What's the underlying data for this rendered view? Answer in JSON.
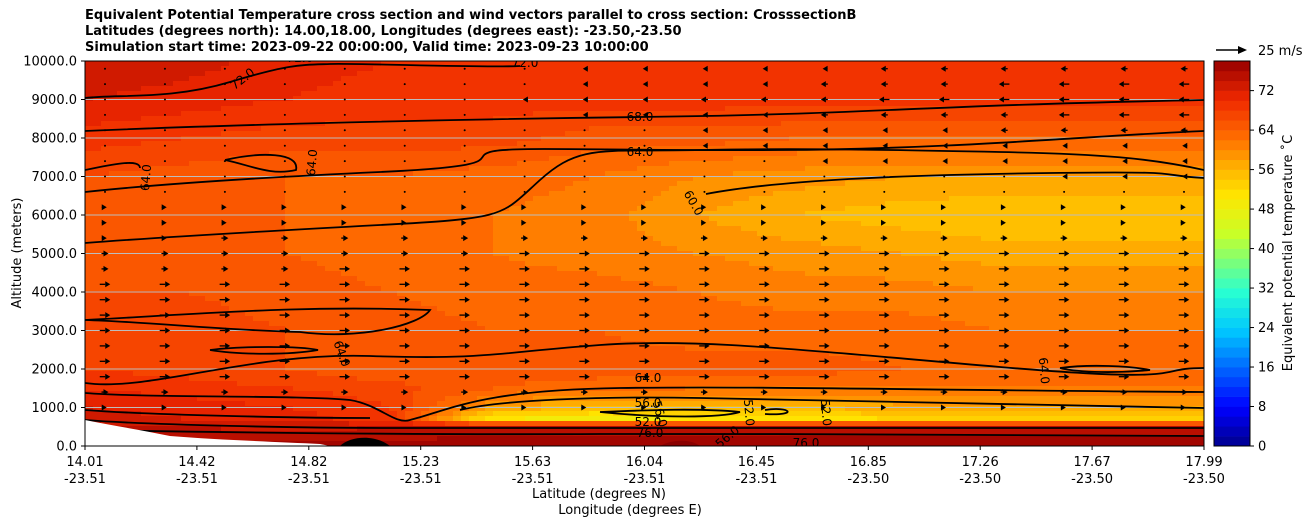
{
  "title": {
    "line1": "Equivalent Potential Temperature cross section and wind vectors parallel to cross section: CrosssectionB",
    "line2": "Latitudes (degrees north): 14.00,18.00, Longitudes (degrees east): -23.50,-23.50",
    "line3": "Simulation start time: 2023-09-22 00:00:00, Valid time: 2023-09-23 10:00:00"
  },
  "chart_data": {
    "type": "heatmap",
    "xlabel_lat": "Latitude (degrees N)",
    "xlabel_lon": "Longitude (degrees E)",
    "ylabel": "Altitude (meters)",
    "ylim": [
      0,
      10000
    ],
    "y_ticks": [
      "0.0",
      "1000.0",
      "2000.0",
      "3000.0",
      "4000.0",
      "5000.0",
      "6000.0",
      "7000.0",
      "8000.0",
      "9000.0",
      "10000.0"
    ],
    "y_tick_values": [
      0,
      1000,
      2000,
      3000,
      4000,
      5000,
      6000,
      7000,
      8000,
      9000,
      10000
    ],
    "x_ticks_lat": [
      "14.01",
      "14.42",
      "14.82",
      "15.23",
      "15.63",
      "16.04",
      "16.45",
      "16.85",
      "17.26",
      "17.67",
      "17.99"
    ],
    "x_ticks_lon": [
      "-23.51",
      "-23.51",
      "-23.51",
      "-23.51",
      "-23.51",
      "-23.51",
      "-23.51",
      "-23.50",
      "-23.50",
      "-23.50",
      "-23.50"
    ],
    "grid": "horizontal",
    "colorbar": {
      "label": "Equivalent potential temperature ˚C",
      "ticks": [
        "0",
        "8",
        "16",
        "24",
        "32",
        "40",
        "48",
        "56",
        "64",
        "72"
      ],
      "tick_values": [
        0,
        8,
        16,
        24,
        32,
        40,
        48,
        56,
        64,
        72
      ],
      "range": [
        0,
        78
      ]
    },
    "quiver_key": "25 m/s",
    "contour_labels": [
      "72.0",
      "72.0",
      "72.0",
      "68.0",
      "64.0",
      "64.0",
      "64.0",
      "60.0",
      "64.0",
      "64.0",
      "64.0",
      "56.0",
      "56.0",
      "52.0",
      "52.0",
      "52.0",
      "56.0",
      "76.0",
      "76.0"
    ],
    "field_rows": [
      {
        "y": 10000,
        "values": [
          74,
          73,
          71,
          70,
          70,
          70,
          70,
          70,
          70,
          70,
          70,
          70
        ]
      },
      {
        "y": 9000,
        "values": [
          72,
          71,
          70,
          69,
          69,
          69,
          69,
          69,
          69,
          69,
          69,
          69
        ]
      },
      {
        "y": 8000,
        "values": [
          69,
          68,
          67,
          67,
          67,
          65,
          65,
          64,
          64,
          64,
          64,
          64
        ]
      },
      {
        "y": 7000,
        "values": [
          66,
          65,
          64,
          64,
          63,
          62,
          60,
          59,
          58,
          58,
          58,
          58
        ]
      },
      {
        "y": 6000,
        "values": [
          66,
          65,
          64,
          63,
          62,
          61,
          58,
          56,
          55,
          54,
          54,
          54
        ]
      },
      {
        "y": 5000,
        "values": [
          66,
          65,
          64,
          63,
          62,
          61,
          60,
          59,
          58,
          57,
          57,
          57
        ]
      },
      {
        "y": 4000,
        "values": [
          66,
          66,
          65,
          64,
          63,
          63,
          62,
          61,
          61,
          60,
          60,
          60
        ]
      },
      {
        "y": 3000,
        "values": [
          68,
          67,
          66,
          65,
          64,
          64,
          63,
          63,
          63,
          62,
          62,
          62
        ]
      },
      {
        "y": 2000,
        "values": [
          68,
          67,
          66,
          64,
          65,
          65,
          65,
          65,
          64,
          64,
          64,
          64
        ]
      },
      {
        "y": 1500,
        "values": [
          70,
          69,
          68,
          67,
          64,
          63,
          62,
          62,
          62,
          62,
          62,
          62
        ]
      },
      {
        "y": 1000,
        "values": [
          72,
          71,
          70,
          68,
          58,
          55,
          55,
          56,
          57,
          58,
          58,
          58
        ]
      },
      {
        "y": 700,
        "values": [
          73,
          72,
          71,
          69,
          50,
          49,
          50,
          51,
          52,
          52,
          52,
          53
        ]
      },
      {
        "y": 500,
        "values": [
          75,
          74,
          73,
          74,
          75,
          75,
          75,
          75,
          75,
          75,
          75,
          75
        ]
      },
      {
        "y": 0,
        "values": [
          77,
          77,
          77,
          77,
          77,
          77,
          77,
          77,
          77,
          77,
          77,
          77
        ]
      }
    ],
    "wind_rows": [
      {
        "y": 9800,
        "u": [
          0,
          0,
          0,
          0,
          0,
          -1,
          -1,
          -1,
          -2,
          -2,
          -2,
          -2
        ]
      },
      {
        "y": 9400,
        "u": [
          0,
          0,
          0,
          0,
          0,
          -1,
          -1,
          -2,
          -2,
          -3,
          -3,
          -3
        ]
      },
      {
        "y": 9000,
        "u": [
          0,
          0,
          0,
          0,
          -1,
          -1,
          -2,
          -2,
          -3,
          -3,
          -3,
          -3
        ]
      },
      {
        "y": 8600,
        "u": [
          0,
          0,
          0,
          0,
          0,
          -1,
          -1,
          -2,
          -2,
          -2,
          -3,
          -3
        ]
      },
      {
        "y": 8200,
        "u": [
          0,
          0,
          0,
          0,
          0,
          0,
          -1,
          -1,
          -1,
          -2,
          -2,
          -2
        ]
      },
      {
        "y": 7800,
        "u": [
          0,
          0,
          0,
          0,
          0,
          0,
          -1,
          -1,
          -1,
          -1,
          -1,
          -1
        ]
      },
      {
        "y": 7400,
        "u": [
          0,
          0,
          0,
          0,
          0,
          0,
          0,
          -1,
          -1,
          -1,
          -1,
          -1
        ]
      },
      {
        "y": 7000,
        "u": [
          0,
          0,
          0,
          0,
          0,
          0,
          0,
          0,
          0,
          0,
          -1,
          -1
        ]
      },
      {
        "y": 6600,
        "u": [
          0,
          0,
          0,
          0,
          0,
          0,
          0,
          0,
          0,
          0,
          0,
          0
        ]
      },
      {
        "y": 6200,
        "u": [
          1,
          1,
          1,
          1,
          1,
          1,
          1,
          1,
          1,
          1,
          1,
          1
        ]
      },
      {
        "y": 5800,
        "u": [
          1,
          1,
          1,
          1,
          1,
          1,
          1,
          1,
          1,
          1,
          1,
          1
        ]
      },
      {
        "y": 5400,
        "u": [
          1,
          2,
          2,
          2,
          2,
          2,
          2,
          2,
          2,
          2,
          2,
          2
        ]
      },
      {
        "y": 5000,
        "u": [
          2,
          2,
          2,
          2,
          3,
          3,
          3,
          3,
          3,
          3,
          3,
          3
        ]
      },
      {
        "y": 4600,
        "u": [
          2,
          2,
          3,
          3,
          3,
          3,
          3,
          3,
          3,
          3,
          3,
          3
        ]
      },
      {
        "y": 4200,
        "u": [
          3,
          3,
          3,
          3,
          3,
          3,
          3,
          3,
          3,
          3,
          3,
          3
        ]
      },
      {
        "y": 3800,
        "u": [
          3,
          3,
          3,
          3,
          3,
          3,
          3,
          3,
          3,
          3,
          3,
          3
        ]
      },
      {
        "y": 3400,
        "u": [
          3,
          3,
          3,
          3,
          3,
          3,
          3,
          3,
          3,
          3,
          3,
          3
        ]
      },
      {
        "y": 3000,
        "u": [
          3,
          3,
          3,
          3,
          3,
          3,
          3,
          3,
          3,
          3,
          3,
          3
        ]
      },
      {
        "y": 2600,
        "u": [
          3,
          3,
          3,
          3,
          3,
          3,
          3,
          3,
          3,
          3,
          3,
          3
        ]
      },
      {
        "y": 2200,
        "u": [
          3,
          3,
          3,
          3,
          3,
          3,
          3,
          3,
          3,
          3,
          3,
          3
        ]
      },
      {
        "y": 1800,
        "u": [
          3,
          3,
          3,
          3,
          3,
          3,
          3,
          3,
          3,
          3,
          3,
          3
        ]
      },
      {
        "y": 1400,
        "u": [
          2,
          2,
          2,
          2,
          2,
          2,
          2,
          2,
          2,
          2,
          2,
          2
        ]
      },
      {
        "y": 1000,
        "u": [
          1,
          1,
          1,
          1,
          1,
          1,
          1,
          1,
          1,
          1,
          1,
          1
        ]
      }
    ]
  }
}
